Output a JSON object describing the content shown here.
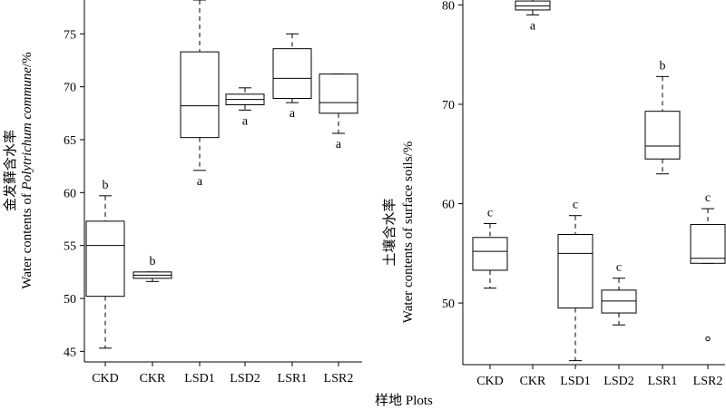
{
  "figure": {
    "xlabel": "样地 Plots"
  },
  "chart_data": [
    {
      "type": "box",
      "ylabel_cn": "金发藓含水率",
      "ylabel_en_prefix": "Water contents of ",
      "ylabel_en_italic": "Polytrichum commune",
      "ylabel_en_suffix": "/%",
      "yticks": [
        45,
        50,
        55,
        60,
        65,
        70,
        75
      ],
      "ylim": [
        44,
        78.2
      ],
      "categories": [
        "CKD",
        "CKR",
        "LSD1",
        "LSD2",
        "LSR1",
        "LSR2"
      ],
      "boxes": [
        {
          "category": "CKD",
          "whisker_low": 45.3,
          "q1": 50.2,
          "median": 55.0,
          "q3": 57.3,
          "whisker_high": 59.7,
          "sig": "b"
        },
        {
          "category": "CKR",
          "whisker_low": 51.6,
          "q1": 51.9,
          "median": 52.2,
          "q3": 52.5,
          "whisker_high": 52.5,
          "sig": "b"
        },
        {
          "category": "LSD1",
          "whisker_low": 62.1,
          "q1": 65.2,
          "median": 68.2,
          "q3": 73.3,
          "whisker_high": 78.2,
          "sig": "a"
        },
        {
          "category": "LSD2",
          "whisker_low": 67.8,
          "q1": 68.3,
          "median": 68.8,
          "q3": 69.3,
          "whisker_high": 69.9,
          "sig": "a"
        },
        {
          "category": "LSR1",
          "whisker_low": 68.5,
          "q1": 68.9,
          "median": 70.8,
          "q3": 73.6,
          "whisker_high": 75.0,
          "sig": "a"
        },
        {
          "category": "LSR2",
          "whisker_low": 65.6,
          "q1": 67.5,
          "median": 68.5,
          "q3": 71.2,
          "whisker_high": 71.2,
          "sig": "a"
        }
      ],
      "outliers": []
    },
    {
      "type": "box",
      "ylabel_cn": "土壤含水率",
      "ylabel_en_prefix": "Water contents of surface soils/%",
      "ylabel_en_italic": "",
      "ylabel_en_suffix": "",
      "yticks": [
        50,
        60,
        70,
        80
      ],
      "ylim": [
        43.8,
        80.5
      ],
      "categories": [
        "CKD",
        "CKR",
        "LSD1",
        "LSD2",
        "LSR1",
        "LSR2"
      ],
      "boxes": [
        {
          "category": "CKD",
          "whisker_low": 51.5,
          "q1": 53.3,
          "median": 55.2,
          "q3": 56.6,
          "whisker_high": 58.0,
          "sig": "c"
        },
        {
          "category": "CKR",
          "whisker_low": 79.0,
          "q1": 79.5,
          "median": 79.9,
          "q3": 80.4,
          "whisker_high": 80.8,
          "sig": "a"
        },
        {
          "category": "LSD1",
          "whisker_low": 44.2,
          "q1": 49.5,
          "median": 55.0,
          "q3": 56.9,
          "whisker_high": 58.8,
          "sig": "c"
        },
        {
          "category": "LSD2",
          "whisker_low": 47.8,
          "q1": 49.0,
          "median": 50.2,
          "q3": 51.3,
          "whisker_high": 52.5,
          "sig": "c"
        },
        {
          "category": "LSR1",
          "whisker_low": 63.0,
          "q1": 64.5,
          "median": 65.8,
          "q3": 69.3,
          "whisker_high": 72.8,
          "sig": "b"
        },
        {
          "category": "LSR2",
          "whisker_low": 54.0,
          "q1": 54.0,
          "median": 54.5,
          "q3": 57.9,
          "whisker_high": 59.5,
          "sig": "c"
        }
      ],
      "outliers": [
        {
          "category": "LSR2",
          "value": 46.4
        }
      ]
    }
  ]
}
